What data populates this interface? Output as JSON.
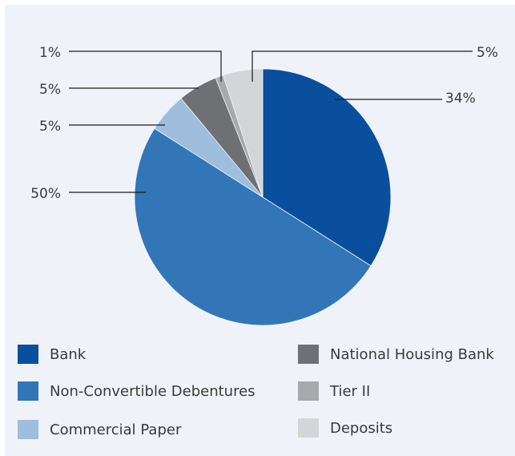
{
  "chart_data": {
    "type": "pie",
    "slices": [
      {
        "name": "Bank",
        "value": 34,
        "label": "34%",
        "color": "#0a4f9e"
      },
      {
        "name": "Non-Convertible Debentures",
        "value": 50,
        "label": "50%",
        "color": "#3276b8"
      },
      {
        "name": "Commercial Paper",
        "value": 5,
        "label": "5%",
        "color": "#9fbddc"
      },
      {
        "name": "National Housing Bank",
        "value": 5,
        "label": "5%",
        "color": "#6e7073"
      },
      {
        "name": "Tier II",
        "value": 1,
        "label": "1%",
        "color": "#a7a9ac"
      },
      {
        "name": "Deposits",
        "value": 5,
        "label": "5%",
        "color": "#d4d5d6"
      }
    ],
    "legend_position": "bottom"
  }
}
